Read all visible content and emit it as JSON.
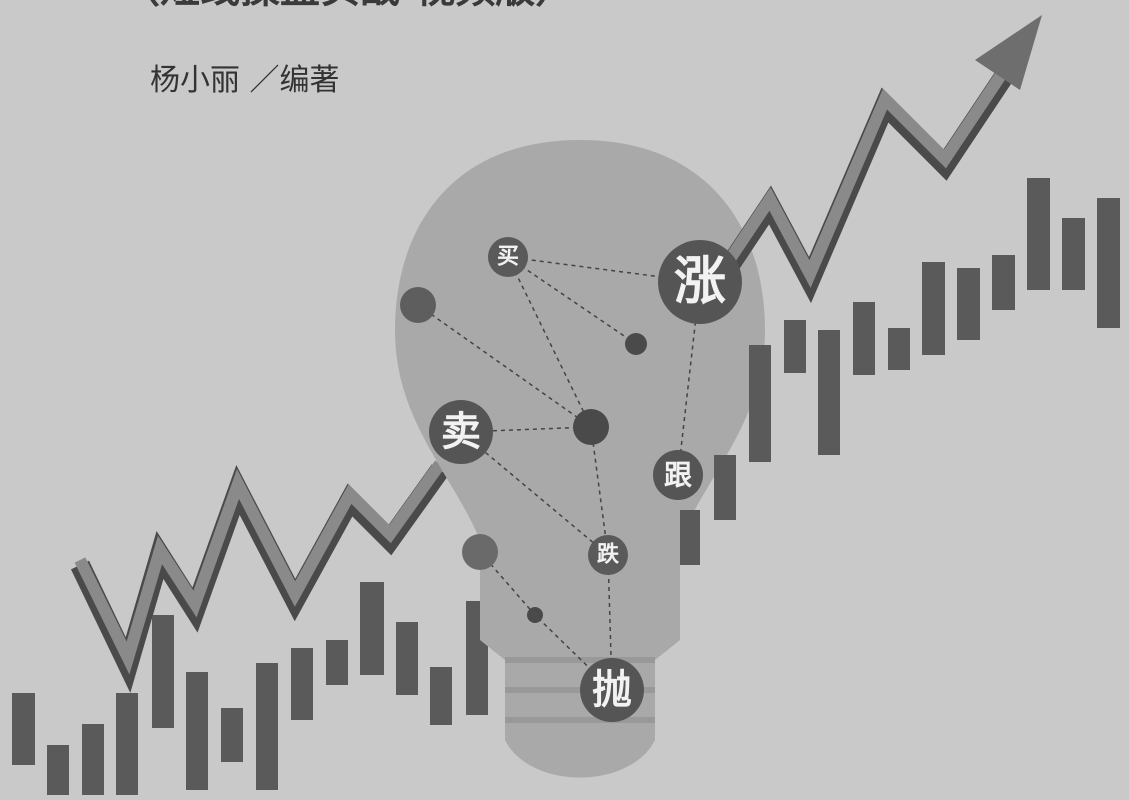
{
  "header": {
    "title": "（短线操盘实战·视频版）",
    "author": "杨小丽 ／编著"
  },
  "bulb": {
    "labels": [
      "买",
      "涨",
      "卖",
      "跟",
      "跌",
      "抛"
    ]
  }
}
